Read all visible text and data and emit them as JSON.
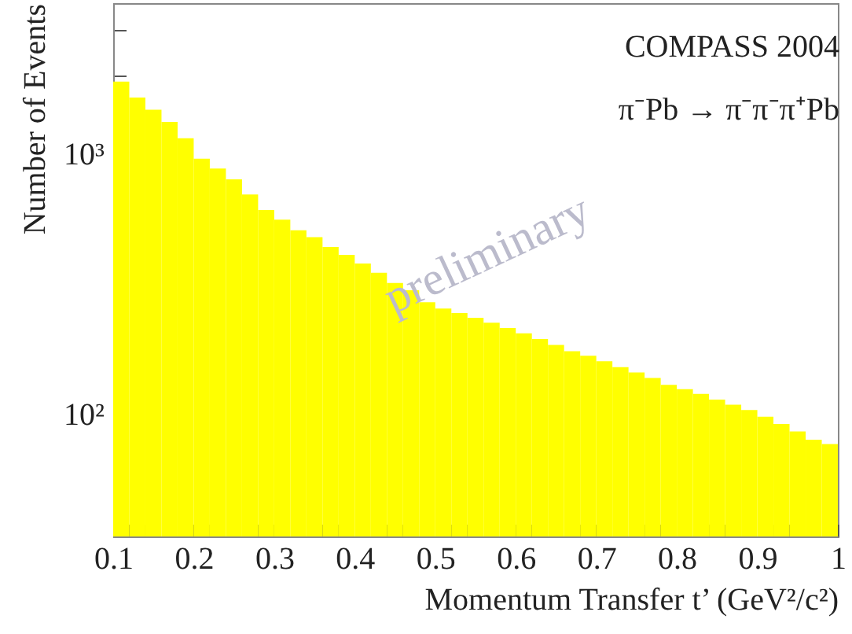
{
  "chart_data": {
    "type": "histogram",
    "xlabel": "Momentum Transfer t’ (GeV²/c²)",
    "ylabel": "Number of Events",
    "annotations": [
      "COMPASS 2004",
      "π⁻Pb → π⁻π⁻π⁺Pb",
      "preliminary"
    ],
    "bins": [
      0.1,
      0.12,
      0.14,
      0.16,
      0.18,
      0.2,
      0.22,
      0.24,
      0.26,
      0.28,
      0.3,
      0.32,
      0.34,
      0.36,
      0.38,
      0.4,
      0.42,
      0.44,
      0.46,
      0.48,
      0.5,
      0.52,
      0.54,
      0.56,
      0.58,
      0.6,
      0.62,
      0.64,
      0.66,
      0.68,
      0.7,
      0.72,
      0.74,
      0.76,
      0.78,
      0.8,
      0.82,
      0.84,
      0.86,
      0.88,
      0.9,
      0.92,
      0.94,
      0.96,
      0.98,
      1.0
    ],
    "values": [
      1900,
      1650,
      1480,
      1330,
      1150,
      960,
      880,
      800,
      700,
      610,
      560,
      510,
      480,
      440,
      410,
      380,
      350,
      320,
      300,
      270,
      255,
      245,
      235,
      225,
      215,
      205,
      195,
      185,
      175,
      168,
      160,
      152,
      145,
      138,
      130,
      125,
      120,
      114,
      109,
      104,
      98,
      92,
      86,
      80,
      77
    ],
    "color": "#ffff00",
    "log": true,
    "grid": false,
    "xlim": [
      0.1,
      1.0
    ],
    "xticks": [
      0.1,
      0.2,
      0.3,
      0.4,
      0.5,
      0.6,
      0.7,
      0.8,
      0.9,
      1,
      {
        "value": 0.12,
        "label": null
      },
      {
        "value": 0.14,
        "label": null
      },
      {
        "value": 0.16,
        "label": null
      },
      {
        "value": 0.18,
        "label": null
      },
      {
        "value": 0.22,
        "label": null
      },
      {
        "value": 0.24,
        "label": null
      },
      {
        "value": 0.26,
        "label": null
      },
      {
        "value": 0.28,
        "label": null
      },
      {
        "value": 0.32,
        "label": null
      },
      {
        "value": 0.34,
        "label": null
      },
      {
        "value": 0.36,
        "label": null
      },
      {
        "value": 0.38,
        "label": null
      },
      {
        "value": 0.42,
        "label": null
      },
      {
        "value": 0.44,
        "label": null
      },
      {
        "value": 0.46,
        "label": null
      },
      {
        "value": 0.48,
        "label": null
      },
      {
        "value": 0.52,
        "label": null
      },
      {
        "value": 0.54,
        "label": null
      },
      {
        "value": 0.56,
        "label": null
      },
      {
        "value": 0.58,
        "label": null
      },
      {
        "value": 0.62,
        "label": null
      },
      {
        "value": 0.64,
        "label": null
      },
      {
        "value": 0.66,
        "label": null
      },
      {
        "value": 0.68,
        "label": null
      },
      {
        "value": 0.72,
        "label": null
      },
      {
        "value": 0.74,
        "label": null
      },
      {
        "value": 0.76,
        "label": null
      },
      {
        "value": 0.78,
        "label": null
      },
      {
        "value": 0.82,
        "label": null
      },
      {
        "value": 0.84,
        "label": null
      },
      {
        "value": 0.86,
        "label": null
      },
      {
        "value": 0.88,
        "label": null
      },
      {
        "value": 0.92,
        "label": null
      },
      {
        "value": 0.94,
        "label": null
      },
      {
        "value": 0.96,
        "label": null
      },
      {
        "value": 0.98,
        "label": null
      }
    ],
    "ylim": [
      34,
      3800
    ],
    "yticks": [
      {
        "value": 100,
        "label": "10²"
      },
      {
        "value": 1000,
        "label": "10³"
      },
      {
        "value": 40,
        "label": null
      },
      {
        "value": 50,
        "label": null
      },
      {
        "value": 60,
        "label": null
      },
      {
        "value": 70,
        "label": null
      },
      {
        "value": 80,
        "label": null
      },
      {
        "value": 90,
        "label": null
      },
      {
        "value": 200,
        "label": null
      },
      {
        "value": 300,
        "label": null
      },
      {
        "value": 400,
        "label": null
      },
      {
        "value": 500,
        "label": null
      },
      {
        "value": 600,
        "label": null
      },
      {
        "value": 700,
        "label": null
      },
      {
        "value": 800,
        "label": null
      },
      {
        "value": 900,
        "label": null
      },
      {
        "value": 2000,
        "label": null
      },
      {
        "value": 3000,
        "label": null
      }
    ]
  }
}
